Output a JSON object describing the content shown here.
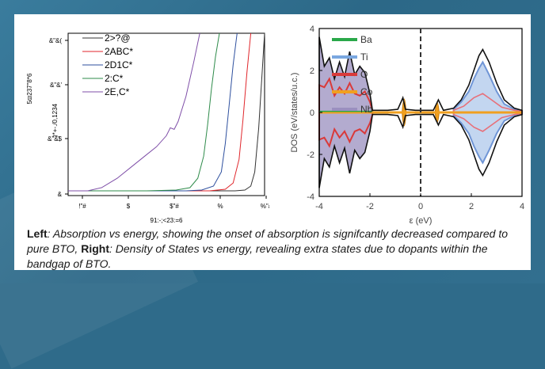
{
  "chart_data": [
    {
      "type": "line",
      "xlabel": "91:-;<23:=6",
      "ylabel_left": ")*+-./0,1234",
      "ylabel_right": "5ϖ237\"8*6",
      "x_tick_labels": [
        "!\"#",
        "$",
        "$\"#",
        "%",
        "%\"#"
      ],
      "y_tick_labels": [
        "&",
        "&\"&$",
        "&\"&'",
        "&\"&("
      ],
      "legend_placement": "top-left",
      "series": [
        {
          "name": "2>?@",
          "color": "#333333",
          "x": [
            0,
            0.2,
            0.4,
            0.6,
            0.75,
            0.85,
            0.9,
            0.93,
            0.95,
            0.97,
            1.0
          ],
          "y": [
            0,
            0,
            0,
            0,
            0,
            0,
            0.005,
            0.03,
            0.12,
            0.4,
            1.0
          ]
        },
        {
          "name": "2ABC*",
          "color": "#e0262b",
          "x": [
            0,
            0.2,
            0.4,
            0.6,
            0.72,
            0.8,
            0.84,
            0.87,
            0.89,
            0.91,
            0.93
          ],
          "y": [
            0,
            0,
            0,
            0,
            0,
            0.01,
            0.05,
            0.2,
            0.45,
            0.75,
            1.0
          ]
        },
        {
          "name": "2D1C*",
          "color": "#2d4f9e",
          "x": [
            0,
            0.2,
            0.4,
            0.6,
            0.68,
            0.74,
            0.78,
            0.8,
            0.82,
            0.84,
            0.86
          ],
          "y": [
            0,
            0,
            0,
            0,
            0.005,
            0.03,
            0.12,
            0.3,
            0.55,
            0.8,
            1.0
          ]
        },
        {
          "name": "2:C*",
          "color": "#2e8b4a",
          "x": [
            0,
            0.2,
            0.4,
            0.55,
            0.62,
            0.66,
            0.69,
            0.71,
            0.73,
            0.75,
            0.77
          ],
          "y": [
            0,
            0,
            0,
            0.005,
            0.02,
            0.08,
            0.22,
            0.42,
            0.65,
            0.85,
            1.0
          ]
        },
        {
          "name": "2E,C*",
          "color": "#7f4fa8",
          "x": [
            0,
            0.1,
            0.17,
            0.25,
            0.33,
            0.4,
            0.45,
            0.5,
            0.52,
            0.54,
            0.56,
            0.6,
            0.64,
            0.67
          ],
          "y": [
            0,
            0,
            0.02,
            0.08,
            0.16,
            0.23,
            0.28,
            0.35,
            0.4,
            0.39,
            0.44,
            0.6,
            0.82,
            1.0
          ]
        }
      ]
    },
    {
      "type": "area",
      "xlabel": "ε (eV)",
      "ylabel": "DOS (eV/states/u.c.)",
      "xlim": [
        -4,
        4
      ],
      "ylim": [
        -4,
        4
      ],
      "x_tick_labels": [
        "-4",
        "-2",
        "0",
        "2",
        "4"
      ],
      "y_tick_labels": [
        "-4",
        "-2",
        "0",
        "2",
        "4"
      ],
      "legend_placement": "top-left",
      "fermi_line_x": 0,
      "series": [
        {
          "name": "Ba",
          "color": "#2aa84a"
        },
        {
          "name": "Ti",
          "color": "#7aa7e0"
        },
        {
          "name": "O",
          "color": "#d93a3a"
        },
        {
          "name": "Co",
          "color": "#f0a020"
        },
        {
          "name": "Nb",
          "color": "#9a8fbf"
        }
      ]
    }
  ],
  "caption": {
    "left_label": "Left",
    "left_text": ": Absorption vs energy, showing the onset of absorption is signifcantly decreased compared to pure BTO, ",
    "right_label": "Right",
    "right_text": ": Density of States vs energy, revealing extra states due to dopants within the bandgap of BTO."
  }
}
